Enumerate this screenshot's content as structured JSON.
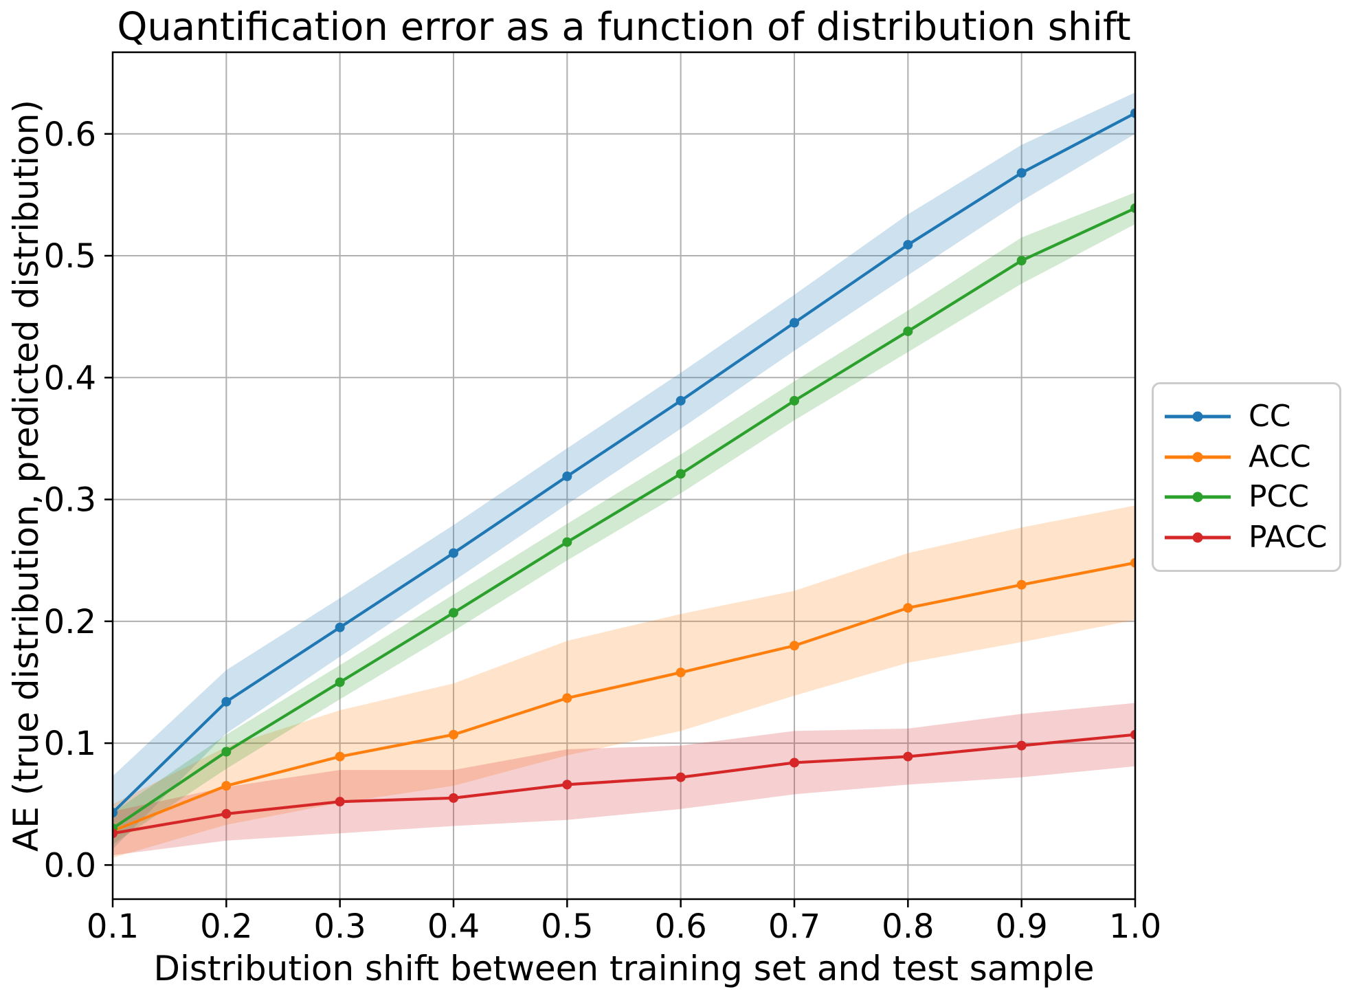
{
  "chart_data": {
    "type": "line",
    "title": "Quantification error as a function of distribution shift",
    "xlabel": "Distribution shift between training set and test sample",
    "ylabel": "AE (true distribution, predicted distribution)",
    "x": [
      0.1,
      0.2,
      0.3,
      0.4,
      0.5,
      0.6,
      0.7,
      0.8,
      0.9,
      1.0
    ],
    "x_tick_labels": [
      "0.1",
      "0.2",
      "0.3",
      "0.4",
      "0.5",
      "0.6",
      "0.7",
      "0.8",
      "0.9",
      "1.0"
    ],
    "y_ticks": [
      0.0,
      0.1,
      0.2,
      0.3,
      0.4,
      0.5,
      0.6
    ],
    "y_tick_labels": [
      "0.0",
      "0.1",
      "0.2",
      "0.3",
      "0.4",
      "0.5",
      "0.6"
    ],
    "xlim": [
      0.1,
      1.0
    ],
    "ylim": [
      -0.028,
      0.667
    ],
    "grid": true,
    "grid_color": "#b0b0b0",
    "axis_color": "#000000",
    "band_opacity": 0.22,
    "legend_position": "outside-right",
    "series": [
      {
        "name": "CC",
        "color": "#1f77b4",
        "values": [
          0.043,
          0.134,
          0.195,
          0.256,
          0.319,
          0.381,
          0.445,
          0.509,
          0.568,
          0.617
        ],
        "band_lower": [
          0.013,
          0.108,
          0.171,
          0.233,
          0.296,
          0.358,
          0.422,
          0.484,
          0.545,
          0.6
        ],
        "band_upper": [
          0.073,
          0.16,
          0.219,
          0.279,
          0.342,
          0.404,
          0.468,
          0.534,
          0.591,
          0.634
        ]
      },
      {
        "name": "ACC",
        "color": "#ff7f0e",
        "values": [
          0.028,
          0.065,
          0.089,
          0.107,
          0.137,
          0.158,
          0.18,
          0.211,
          0.23,
          0.248
        ],
        "band_lower": [
          0.006,
          0.033,
          0.051,
          0.065,
          0.09,
          0.11,
          0.139,
          0.166,
          0.183,
          0.201
        ],
        "band_upper": [
          0.05,
          0.097,
          0.127,
          0.149,
          0.184,
          0.206,
          0.225,
          0.256,
          0.277,
          0.295
        ]
      },
      {
        "name": "PCC",
        "color": "#2ca02c",
        "values": [
          0.03,
          0.093,
          0.15,
          0.207,
          0.265,
          0.321,
          0.381,
          0.438,
          0.496,
          0.539
        ],
        "band_lower": [
          0.017,
          0.079,
          0.136,
          0.192,
          0.25,
          0.305,
          0.365,
          0.421,
          0.477,
          0.526
        ],
        "band_upper": [
          0.043,
          0.107,
          0.164,
          0.222,
          0.28,
          0.337,
          0.397,
          0.455,
          0.515,
          0.552
        ]
      },
      {
        "name": "PACC",
        "color": "#d62728",
        "values": [
          0.026,
          0.042,
          0.052,
          0.055,
          0.066,
          0.072,
          0.084,
          0.089,
          0.098,
          0.107
        ],
        "band_lower": [
          0.008,
          0.02,
          0.026,
          0.032,
          0.037,
          0.046,
          0.058,
          0.066,
          0.072,
          0.081
        ],
        "band_upper": [
          0.044,
          0.064,
          0.078,
          0.078,
          0.095,
          0.098,
          0.11,
          0.112,
          0.124,
          0.133
        ]
      }
    ]
  }
}
